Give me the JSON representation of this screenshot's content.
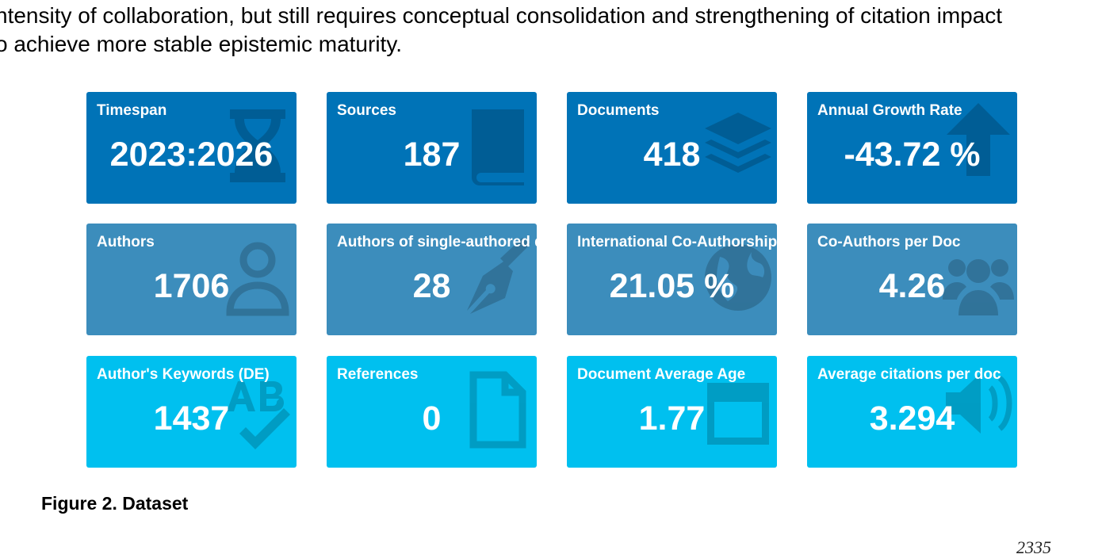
{
  "paragraph": {
    "line1": "ntensity of collaboration, but still requires conceptual consolidation and strengthening of citation impact",
    "line2": "o achieve more stable epistemic maturity."
  },
  "colors": {
    "dark": "#0073b7",
    "mid": "#3c8dbc",
    "light": "#00c0ef"
  },
  "cards": [
    {
      "title": "Timespan",
      "value": "2023:2026",
      "icon": "hourglass-icon"
    },
    {
      "title": "Sources",
      "value": "187",
      "icon": "book-icon"
    },
    {
      "title": "Documents",
      "value": "418",
      "icon": "layers-icon"
    },
    {
      "title": "Annual Growth Rate",
      "value": "-43.72 %",
      "icon": "arrow-up-icon"
    },
    {
      "title": "Authors",
      "value": "1706",
      "icon": "user-icon"
    },
    {
      "title": "Authors of single-authored docs",
      "value": "28",
      "icon": "pen-nib-icon"
    },
    {
      "title": "International Co-Authorship",
      "value": "21.05 %",
      "icon": "globe-icon"
    },
    {
      "title": "Co-Authors per Doc",
      "value": "4.26",
      "icon": "users-icon"
    },
    {
      "title": "Author's Keywords (DE)",
      "value": "1437",
      "icon": "spell-check-icon"
    },
    {
      "title": "References",
      "value": "0",
      "icon": "file-icon"
    },
    {
      "title": "Document Average Age",
      "value": "1.77",
      "icon": "calendar-icon"
    },
    {
      "title": "Average citations per doc",
      "value": "3.294",
      "icon": "volume-icon"
    }
  ],
  "figure": {
    "caption": "Figure 2. Dataset"
  },
  "page": {
    "number": "2335"
  }
}
